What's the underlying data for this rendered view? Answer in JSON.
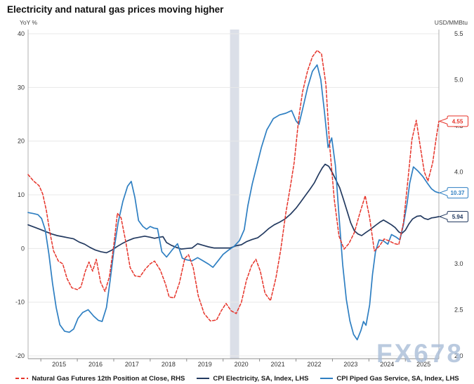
{
  "title": "Electricity and natural gas prices moving higher",
  "watermark": "FX678",
  "chart_data": {
    "type": "line",
    "title": "Electricity and natural gas prices moving higher",
    "left_axis": {
      "unit": "YoY %",
      "ticks": [
        40,
        30,
        20,
        10,
        0,
        -10,
        -20
      ],
      "range": [
        -20,
        40
      ]
    },
    "right_axis": {
      "unit": "USD/MMBtu",
      "ticks": [
        5.5,
        5.0,
        4.5,
        4.0,
        3.5,
        3.0,
        2.5,
        2.0
      ],
      "range": [
        2.0,
        5.5
      ]
    },
    "x_axis": {
      "years": [
        2015,
        2016,
        2017,
        2018,
        2019,
        2020,
        2021,
        2022,
        2023,
        2024,
        2025
      ],
      "range": [
        2014.65,
        2025.92
      ]
    },
    "grid": true,
    "legend_position": "bottom",
    "recession_band": {
      "from": 2020.19,
      "to": 2020.44,
      "color": "#dbdfe8"
    },
    "colors": {
      "grid": "#e8e8e8",
      "axis_line": "#b0b0b0",
      "bottom_axis": "#8c8c8c",
      "tick_text": "#333333"
    },
    "series": [
      {
        "name": "Natural Gas Futures 12th Position at Close, RHS",
        "axis": "right",
        "color": "#e63329",
        "dash": true,
        "last_label": "4.55",
        "points": [
          [
            2014.65,
            3.97
          ],
          [
            2014.8,
            3.9
          ],
          [
            2014.95,
            3.85
          ],
          [
            2015.05,
            3.76
          ],
          [
            2015.15,
            3.58
          ],
          [
            2015.25,
            3.34
          ],
          [
            2015.35,
            3.14
          ],
          [
            2015.48,
            3.03
          ],
          [
            2015.6,
            3.0
          ],
          [
            2015.72,
            2.84
          ],
          [
            2015.85,
            2.74
          ],
          [
            2016.0,
            2.72
          ],
          [
            2016.1,
            2.75
          ],
          [
            2016.22,
            2.92
          ],
          [
            2016.32,
            3.02
          ],
          [
            2016.42,
            2.92
          ],
          [
            2016.52,
            3.05
          ],
          [
            2016.64,
            2.8
          ],
          [
            2016.76,
            2.7
          ],
          [
            2016.88,
            2.86
          ],
          [
            2017.0,
            3.2
          ],
          [
            2017.1,
            3.55
          ],
          [
            2017.2,
            3.5
          ],
          [
            2017.32,
            3.26
          ],
          [
            2017.45,
            2.96
          ],
          [
            2017.58,
            2.87
          ],
          [
            2017.72,
            2.86
          ],
          [
            2017.86,
            2.94
          ],
          [
            2018.0,
            3.0
          ],
          [
            2018.12,
            3.03
          ],
          [
            2018.28,
            2.93
          ],
          [
            2018.42,
            2.78
          ],
          [
            2018.52,
            2.64
          ],
          [
            2018.66,
            2.63
          ],
          [
            2018.8,
            2.79
          ],
          [
            2018.95,
            3.06
          ],
          [
            2019.05,
            3.1
          ],
          [
            2019.18,
            2.96
          ],
          [
            2019.32,
            2.65
          ],
          [
            2019.48,
            2.46
          ],
          [
            2019.65,
            2.38
          ],
          [
            2019.82,
            2.39
          ],
          [
            2019.95,
            2.49
          ],
          [
            2020.08,
            2.57
          ],
          [
            2020.22,
            2.49
          ],
          [
            2020.36,
            2.46
          ],
          [
            2020.5,
            2.58
          ],
          [
            2020.64,
            2.82
          ],
          [
            2020.78,
            2.98
          ],
          [
            2020.9,
            3.05
          ],
          [
            2021.02,
            2.92
          ],
          [
            2021.15,
            2.68
          ],
          [
            2021.3,
            2.6
          ],
          [
            2021.45,
            2.85
          ],
          [
            2021.58,
            3.15
          ],
          [
            2021.72,
            3.55
          ],
          [
            2021.85,
            3.85
          ],
          [
            2021.95,
            4.1
          ],
          [
            2022.08,
            4.6
          ],
          [
            2022.18,
            4.87
          ],
          [
            2022.32,
            5.1
          ],
          [
            2022.45,
            5.25
          ],
          [
            2022.58,
            5.32
          ],
          [
            2022.7,
            5.28
          ],
          [
            2022.82,
            4.95
          ],
          [
            2022.92,
            4.3
          ],
          [
            2023.05,
            3.7
          ],
          [
            2023.18,
            3.3
          ],
          [
            2023.32,
            3.16
          ],
          [
            2023.45,
            3.22
          ],
          [
            2023.6,
            3.34
          ],
          [
            2023.75,
            3.55
          ],
          [
            2023.9,
            3.74
          ],
          [
            2024.02,
            3.5
          ],
          [
            2024.15,
            3.14
          ],
          [
            2024.28,
            3.19
          ],
          [
            2024.42,
            3.27
          ],
          [
            2024.55,
            3.25
          ],
          [
            2024.7,
            3.22
          ],
          [
            2024.82,
            3.21
          ],
          [
            2024.95,
            3.45
          ],
          [
            2025.08,
            3.95
          ],
          [
            2025.18,
            4.35
          ],
          [
            2025.3,
            4.56
          ],
          [
            2025.42,
            4.25
          ],
          [
            2025.52,
            4.0
          ],
          [
            2025.62,
            3.9
          ],
          [
            2025.75,
            4.1
          ],
          [
            2025.85,
            4.38
          ],
          [
            2025.92,
            4.55
          ]
        ]
      },
      {
        "name": "CPI Electricity, SA, Index, LHS",
        "axis": "left",
        "color": "#233a60",
        "dash": false,
        "last_label": "5.94",
        "points": [
          [
            2014.65,
            4.4
          ],
          [
            2014.85,
            3.9
          ],
          [
            2015.0,
            3.5
          ],
          [
            2015.15,
            3.1
          ],
          [
            2015.3,
            2.7
          ],
          [
            2015.45,
            2.4
          ],
          [
            2015.6,
            2.2
          ],
          [
            2015.75,
            2.0
          ],
          [
            2015.9,
            1.8
          ],
          [
            2016.05,
            1.2
          ],
          [
            2016.2,
            0.8
          ],
          [
            2016.35,
            0.2
          ],
          [
            2016.5,
            -0.3
          ],
          [
            2016.65,
            -0.6
          ],
          [
            2016.8,
            -0.8
          ],
          [
            2016.95,
            -0.3
          ],
          [
            2017.1,
            0.4
          ],
          [
            2017.25,
            1.0
          ],
          [
            2017.4,
            1.5
          ],
          [
            2017.55,
            1.9
          ],
          [
            2017.7,
            2.1
          ],
          [
            2017.85,
            2.3
          ],
          [
            2018.0,
            2.1
          ],
          [
            2018.12,
            1.9
          ],
          [
            2018.25,
            2.1
          ],
          [
            2018.35,
            2.2
          ],
          [
            2018.45,
            1.1
          ],
          [
            2018.58,
            0.6
          ],
          [
            2018.72,
            0.2
          ],
          [
            2018.85,
            -0.1
          ],
          [
            2019.0,
            0.0
          ],
          [
            2019.15,
            0.1
          ],
          [
            2019.3,
            0.9
          ],
          [
            2019.45,
            0.6
          ],
          [
            2019.6,
            0.3
          ],
          [
            2019.75,
            0.1
          ],
          [
            2019.9,
            0.1
          ],
          [
            2020.05,
            0.1
          ],
          [
            2020.2,
            0.1
          ],
          [
            2020.35,
            0.5
          ],
          [
            2020.5,
            0.7
          ],
          [
            2020.65,
            1.3
          ],
          [
            2020.8,
            1.7
          ],
          [
            2020.95,
            2.0
          ],
          [
            2021.1,
            2.8
          ],
          [
            2021.25,
            3.7
          ],
          [
            2021.4,
            4.4
          ],
          [
            2021.55,
            4.9
          ],
          [
            2021.7,
            5.5
          ],
          [
            2021.85,
            6.4
          ],
          [
            2022.0,
            7.5
          ],
          [
            2022.12,
            8.6
          ],
          [
            2022.25,
            9.8
          ],
          [
            2022.38,
            11.0
          ],
          [
            2022.5,
            12.2
          ],
          [
            2022.62,
            13.8
          ],
          [
            2022.72,
            15.0
          ],
          [
            2022.8,
            15.7
          ],
          [
            2022.9,
            15.3
          ],
          [
            2023.0,
            14.1
          ],
          [
            2023.1,
            12.7
          ],
          [
            2023.2,
            11.3
          ],
          [
            2023.3,
            9.2
          ],
          [
            2023.4,
            7.0
          ],
          [
            2023.5,
            4.8
          ],
          [
            2023.6,
            3.3
          ],
          [
            2023.7,
            2.7
          ],
          [
            2023.8,
            2.4
          ],
          [
            2023.92,
            3.0
          ],
          [
            2024.05,
            3.6
          ],
          [
            2024.18,
            4.3
          ],
          [
            2024.3,
            4.9
          ],
          [
            2024.4,
            5.3
          ],
          [
            2024.5,
            4.9
          ],
          [
            2024.62,
            4.4
          ],
          [
            2024.72,
            3.9
          ],
          [
            2024.82,
            3.1
          ],
          [
            2024.9,
            2.8
          ],
          [
            2025.0,
            3.4
          ],
          [
            2025.1,
            4.6
          ],
          [
            2025.2,
            5.5
          ],
          [
            2025.32,
            6.0
          ],
          [
            2025.42,
            6.1
          ],
          [
            2025.52,
            5.6
          ],
          [
            2025.62,
            5.4
          ],
          [
            2025.72,
            5.7
          ],
          [
            2025.82,
            5.8
          ],
          [
            2025.92,
            5.94
          ]
        ]
      },
      {
        "name": "CPI Piped Gas Service, SA, Index, LHS",
        "axis": "left",
        "color": "#2e7fc2",
        "dash": false,
        "last_label": "10.37",
        "points": [
          [
            2014.65,
            6.7
          ],
          [
            2014.8,
            6.5
          ],
          [
            2014.92,
            6.3
          ],
          [
            2015.02,
            5.6
          ],
          [
            2015.12,
            3.5
          ],
          [
            2015.22,
            -1.0
          ],
          [
            2015.32,
            -6.5
          ],
          [
            2015.42,
            -11.0
          ],
          [
            2015.52,
            -14.2
          ],
          [
            2015.65,
            -15.4
          ],
          [
            2015.78,
            -15.6
          ],
          [
            2015.9,
            -15.0
          ],
          [
            2016.02,
            -13.0
          ],
          [
            2016.15,
            -11.9
          ],
          [
            2016.3,
            -11.4
          ],
          [
            2016.45,
            -12.6
          ],
          [
            2016.58,
            -13.4
          ],
          [
            2016.68,
            -13.6
          ],
          [
            2016.8,
            -11.0
          ],
          [
            2016.9,
            -6.0
          ],
          [
            2017.0,
            -0.5
          ],
          [
            2017.12,
            4.8
          ],
          [
            2017.25,
            8.8
          ],
          [
            2017.38,
            11.6
          ],
          [
            2017.48,
            12.5
          ],
          [
            2017.58,
            9.5
          ],
          [
            2017.68,
            5.2
          ],
          [
            2017.8,
            4.1
          ],
          [
            2017.9,
            3.6
          ],
          [
            2018.0,
            4.1
          ],
          [
            2018.1,
            3.8
          ],
          [
            2018.2,
            3.7
          ],
          [
            2018.32,
            -0.6
          ],
          [
            2018.45,
            -1.6
          ],
          [
            2018.6,
            -0.3
          ],
          [
            2018.75,
            0.9
          ],
          [
            2018.88,
            -1.8
          ],
          [
            2019.0,
            -2.1
          ],
          [
            2019.15,
            -2.3
          ],
          [
            2019.3,
            -1.7
          ],
          [
            2019.45,
            -2.3
          ],
          [
            2019.6,
            -2.9
          ],
          [
            2019.72,
            -3.5
          ],
          [
            2019.85,
            -2.4
          ],
          [
            2020.0,
            -1.1
          ],
          [
            2020.15,
            -0.3
          ],
          [
            2020.3,
            0.4
          ],
          [
            2020.45,
            1.5
          ],
          [
            2020.58,
            3.5
          ],
          [
            2020.68,
            8.0
          ],
          [
            2020.8,
            12.0
          ],
          [
            2020.92,
            15.3
          ],
          [
            2021.05,
            18.8
          ],
          [
            2021.2,
            22.1
          ],
          [
            2021.38,
            24.2
          ],
          [
            2021.55,
            24.9
          ],
          [
            2021.72,
            25.2
          ],
          [
            2021.88,
            25.7
          ],
          [
            2022.0,
            23.8
          ],
          [
            2022.08,
            23.1
          ],
          [
            2022.2,
            26.5
          ],
          [
            2022.32,
            30.0
          ],
          [
            2022.45,
            33.0
          ],
          [
            2022.58,
            34.2
          ],
          [
            2022.68,
            31.5
          ],
          [
            2022.78,
            25.5
          ],
          [
            2022.88,
            18.8
          ],
          [
            2022.98,
            20.6
          ],
          [
            2023.08,
            15.5
          ],
          [
            2023.18,
            6.0
          ],
          [
            2023.28,
            -3.0
          ],
          [
            2023.38,
            -9.5
          ],
          [
            2023.48,
            -13.5
          ],
          [
            2023.58,
            -16.0
          ],
          [
            2023.68,
            -17.0
          ],
          [
            2023.78,
            -15.3
          ],
          [
            2023.85,
            -13.6
          ],
          [
            2023.92,
            -14.3
          ],
          [
            2024.02,
            -10.5
          ],
          [
            2024.1,
            -4.8
          ],
          [
            2024.18,
            -0.6
          ],
          [
            2024.28,
            1.6
          ],
          [
            2024.4,
            1.4
          ],
          [
            2024.52,
            0.8
          ],
          [
            2024.62,
            2.6
          ],
          [
            2024.75,
            2.1
          ],
          [
            2024.85,
            1.6
          ],
          [
            2024.95,
            4.5
          ],
          [
            2025.05,
            8.5
          ],
          [
            2025.12,
            12.2
          ],
          [
            2025.22,
            15.2
          ],
          [
            2025.35,
            14.4
          ],
          [
            2025.48,
            13.4
          ],
          [
            2025.6,
            12.2
          ],
          [
            2025.72,
            11.1
          ],
          [
            2025.82,
            10.6
          ],
          [
            2025.92,
            10.37
          ]
        ]
      }
    ]
  },
  "legend": {
    "items": [
      {
        "label": "Natural Gas Futures 12th Position at Close, RHS",
        "color": "#e63329",
        "dash": true
      },
      {
        "label": "CPI Electricity, SA, Index, LHS",
        "color": "#233a60",
        "dash": false
      },
      {
        "label": "CPI Piped Gas Service, SA, Index, LHS",
        "color": "#2e7fc2",
        "dash": false
      }
    ]
  }
}
